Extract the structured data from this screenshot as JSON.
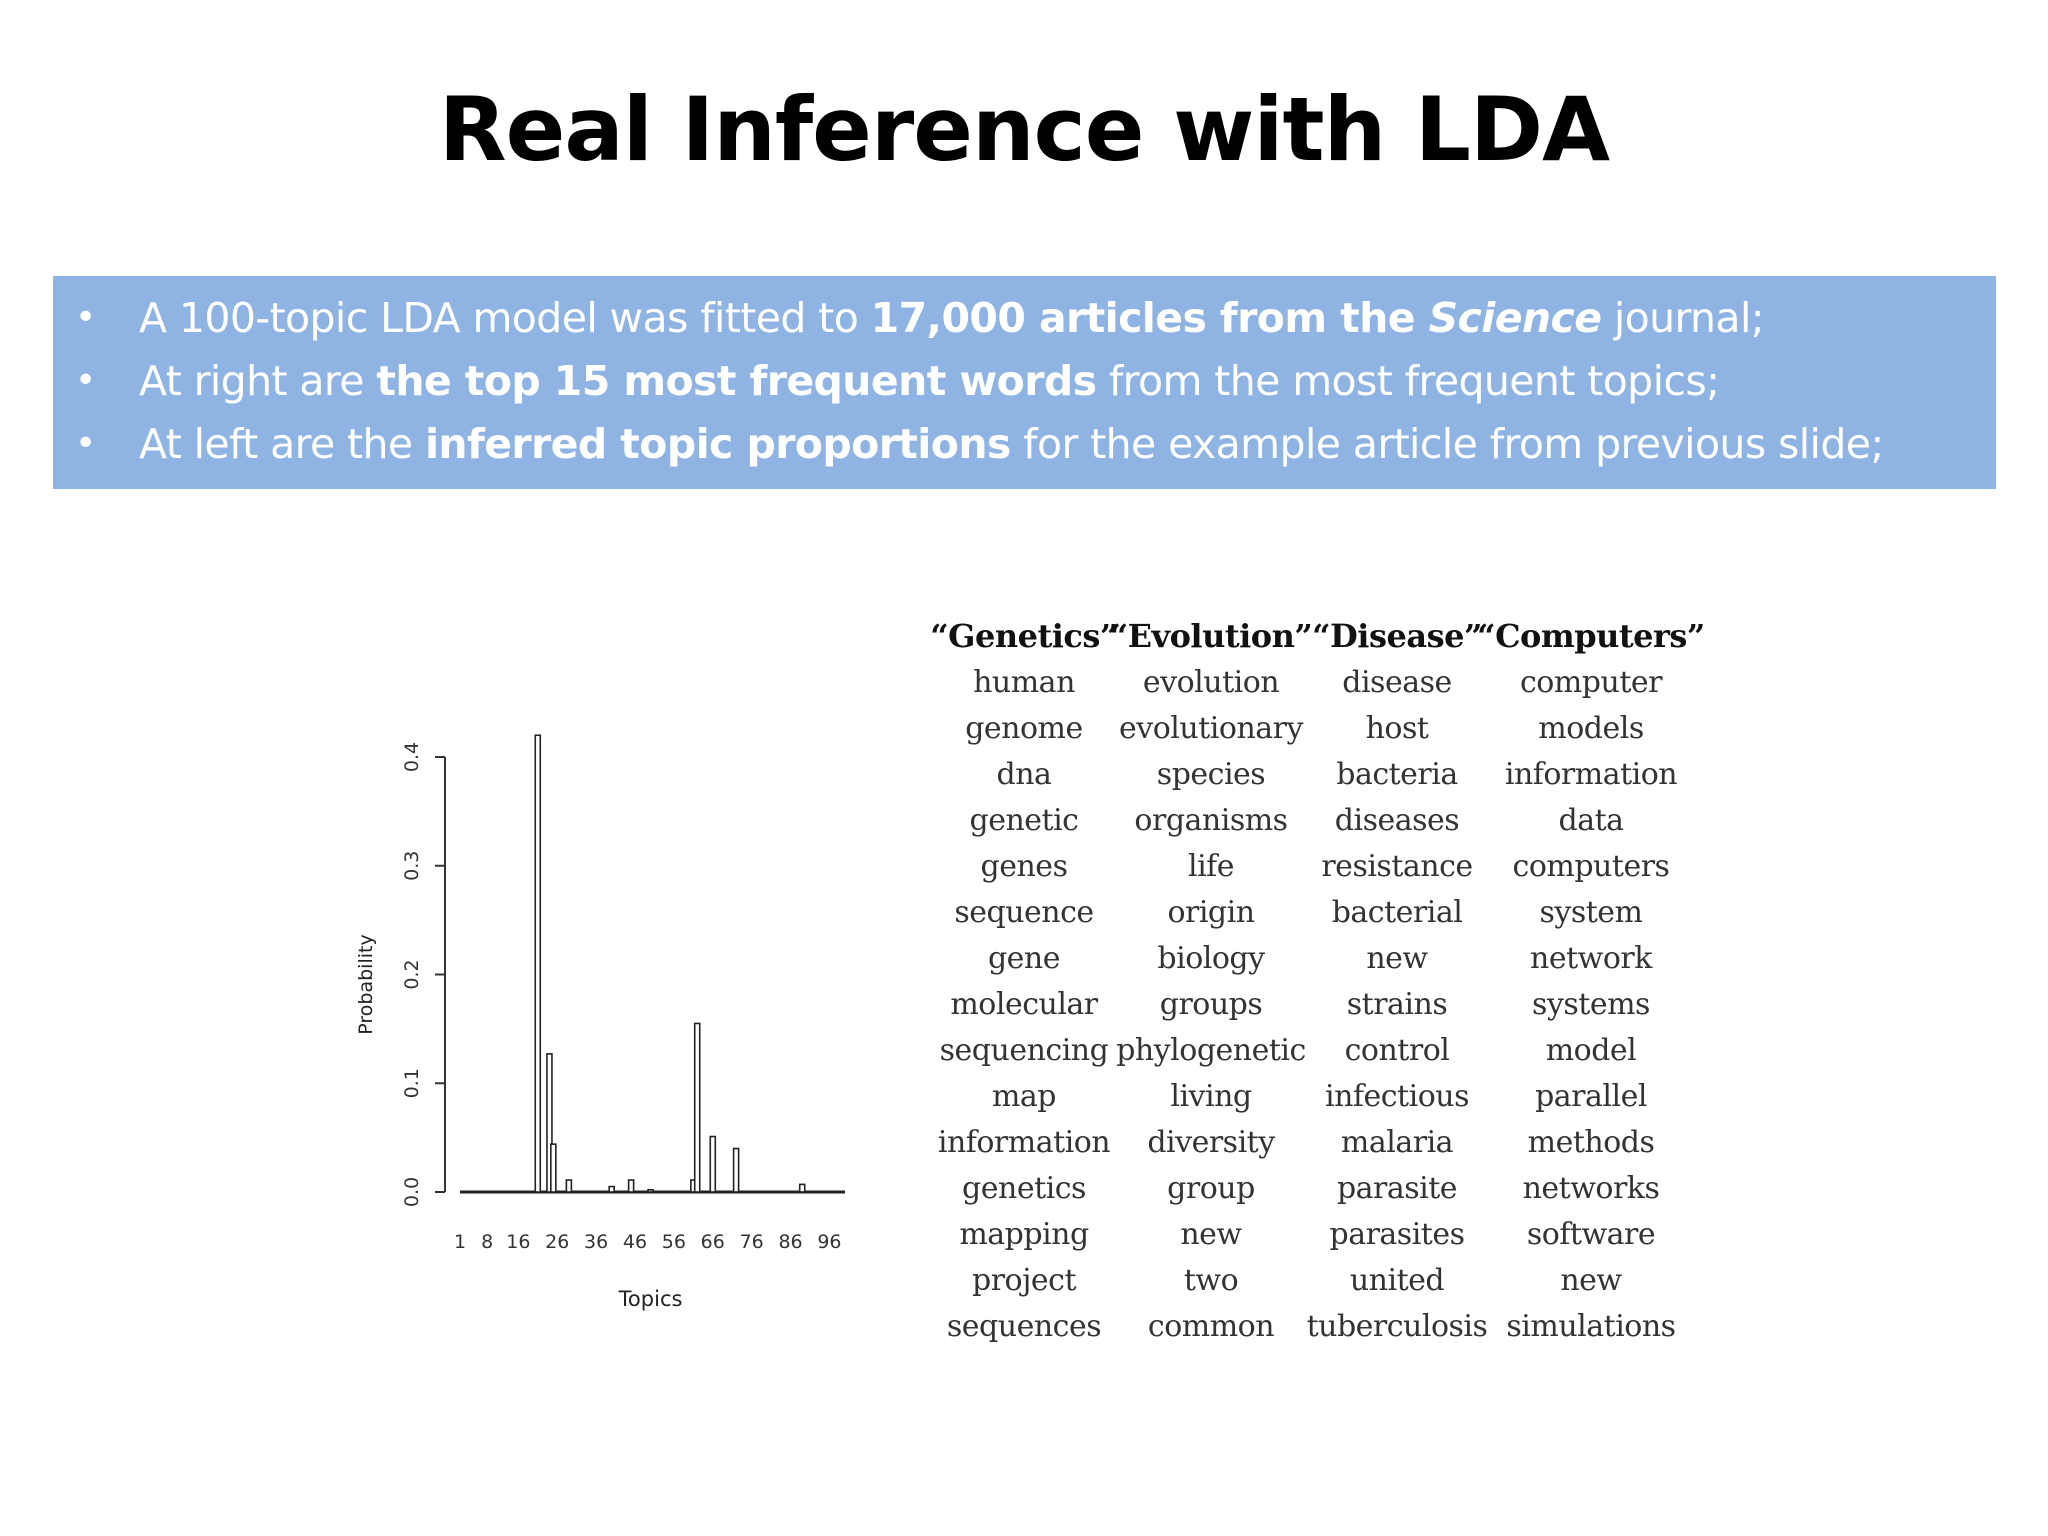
{
  "slide": {
    "title": "Real Inference with LDA"
  },
  "bullets": [
    {
      "parts": [
        {
          "text": "A 100-topic LDA model was fitted to ",
          "style": "normal"
        },
        {
          "text": "17,000 articles from the ",
          "style": "bold"
        },
        {
          "text": "Science",
          "style": "bold-italic"
        },
        {
          "text": " journal;",
          "style": "normal"
        }
      ]
    },
    {
      "parts": [
        {
          "text": "At right are ",
          "style": "normal"
        },
        {
          "text": "the top 15 most frequent words",
          "style": "bold"
        },
        {
          "text": " from the most frequent topics;",
          "style": "normal"
        }
      ]
    },
    {
      "parts": [
        {
          "text": "At left are the ",
          "style": "normal"
        },
        {
          "text": "inferred topic proportions",
          "style": "bold"
        },
        {
          "text": " for the example article from previous slide;",
          "style": "normal"
        }
      ]
    }
  ],
  "chart_data": {
    "type": "bar",
    "xlabel": "Topics",
    "ylabel": "Probability",
    "ylim": [
      0,
      0.4
    ],
    "xlim": [
      1,
      100
    ],
    "x_ticks": [
      1,
      8,
      16,
      26,
      36,
      46,
      56,
      66,
      76,
      86,
      96
    ],
    "y_ticks": [
      "0.0",
      "0.1",
      "0.2",
      "0.3",
      "0.4"
    ],
    "x": [
      21,
      24,
      25,
      29,
      40,
      45,
      50,
      61,
      62,
      66,
      72,
      89
    ],
    "values": [
      0.42,
      0.127,
      0.044,
      0.011,
      0.005,
      0.011,
      0.002,
      0.011,
      0.155,
      0.051,
      0.04,
      0.007
    ]
  },
  "topics": [
    {
      "name": "“Genetics”",
      "words": [
        "human",
        "genome",
        "dna",
        "genetic",
        "genes",
        "sequence",
        "gene",
        "molecular",
        "sequencing",
        "map",
        "information",
        "genetics",
        "mapping",
        "project",
        "sequences"
      ]
    },
    {
      "name": "“Evolution”",
      "words": [
        "evolution",
        "evolutionary",
        "species",
        "organisms",
        "life",
        "origin",
        "biology",
        "groups",
        "phylogenetic",
        "living",
        "diversity",
        "group",
        "new",
        "two",
        "common"
      ]
    },
    {
      "name": "“Disease”",
      "words": [
        "disease",
        "host",
        "bacteria",
        "diseases",
        "resistance",
        "bacterial",
        "new",
        "strains",
        "control",
        "infectious",
        "malaria",
        "parasite",
        "parasites",
        "united",
        "tuberculosis"
      ]
    },
    {
      "name": "“Computers”",
      "words": [
        "computer",
        "models",
        "information",
        "data",
        "computers",
        "system",
        "network",
        "systems",
        "model",
        "parallel",
        "methods",
        "networks",
        "software",
        "new",
        "simulations"
      ]
    }
  ]
}
